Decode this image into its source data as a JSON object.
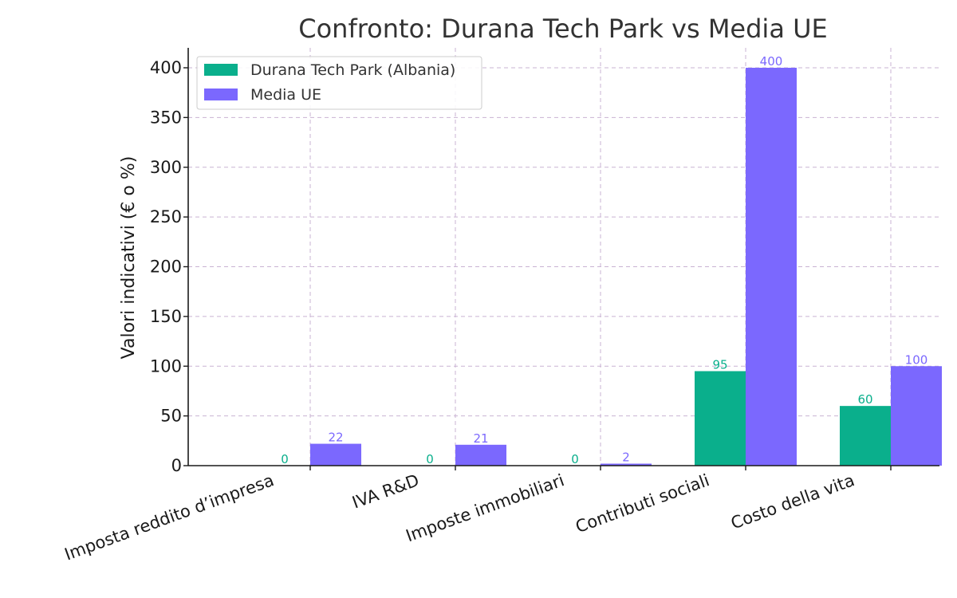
{
  "chart_data": {
    "type": "bar",
    "title": "Confronto: Durana Tech Park vs Media UE",
    "xlabel": "",
    "ylabel": "Valori indicativi (€ o %)",
    "categories": [
      "Imposta reddito d’impresa",
      "IVA R&D",
      "Imposte immobiliari",
      "Contributi sociali",
      "Costo della vita"
    ],
    "series": [
      {
        "name": "Durana Tech Park (Albania)",
        "values": [
          0,
          0,
          0,
          95,
          60
        ],
        "color": "#0aaf8c"
      },
      {
        "name": "Media UE",
        "values": [
          22,
          21,
          2,
          400,
          100
        ],
        "color": "#7b68fe"
      }
    ],
    "ylim": [
      0,
      420
    ],
    "yticks": [
      0,
      50,
      100,
      150,
      200,
      250,
      300,
      350,
      400
    ],
    "grid": true,
    "legend_position": "top-left"
  }
}
